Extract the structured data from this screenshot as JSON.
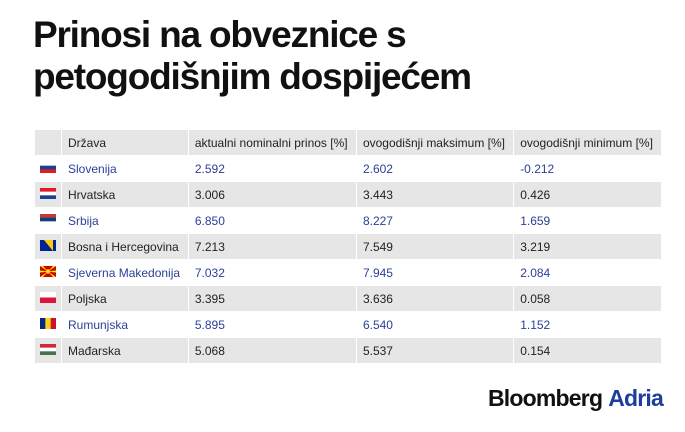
{
  "header": {
    "title_line1": "Prinosi na obveznice s",
    "title_line2": "petogodišnjim dospijećem"
  },
  "table": {
    "columns": [
      "Država",
      "aktualni nominalni prinos [%]",
      "ovogodišnji maksimum [%]",
      "ovogodišnji minimum [%]"
    ],
    "rows": [
      [
        "Slovenija",
        "2.592",
        "2.602",
        "-0.212"
      ],
      [
        "Hrvatska",
        "3.006",
        "3.443",
        "0.426"
      ],
      [
        "Srbija",
        "6.850",
        "8.227",
        "1.659"
      ],
      [
        "Bosna i Hercegovina",
        "7.213",
        "7.549",
        "3.219"
      ],
      [
        "Sjeverna Makedonija",
        "7.032",
        "7.945",
        "2.084"
      ],
      [
        "Poljska",
        "3.395",
        "3.636",
        "0.058"
      ],
      [
        "Rumunjska",
        "5.895",
        "6.540",
        "1.152"
      ],
      [
        "Mađarska",
        "5.068",
        "5.537",
        "0.154"
      ]
    ]
  },
  "logo": {
    "brand": "Bloomberg",
    "suffix": "Adria"
  }
}
